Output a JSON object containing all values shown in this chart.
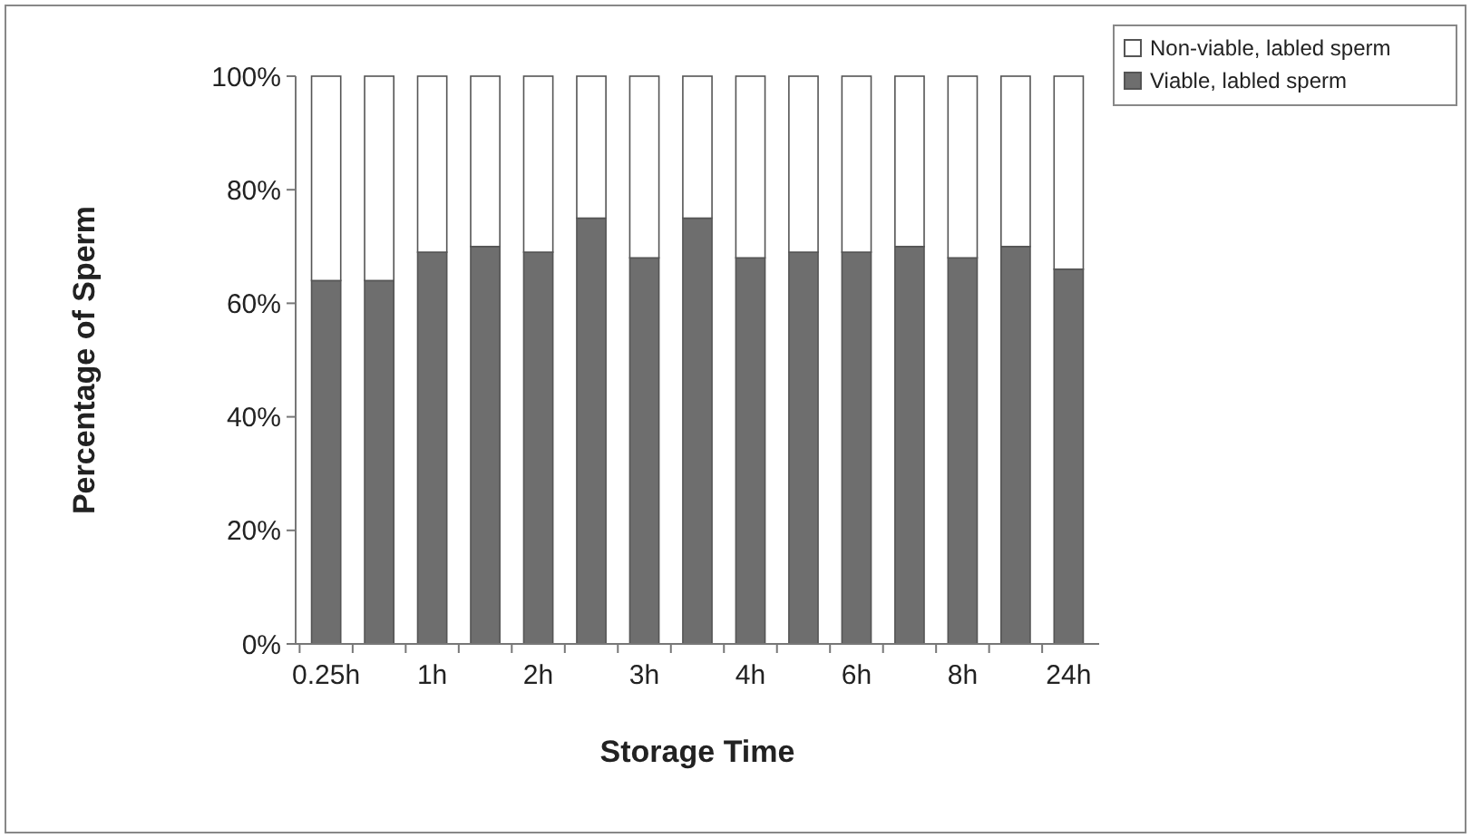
{
  "chart_data": {
    "type": "bar",
    "stacked": true,
    "xlabel": "Storage Time",
    "ylabel": "Percentage of Sperm",
    "categories": [
      "0.25h",
      null,
      "1h",
      null,
      "2h",
      null,
      "3h",
      null,
      "4h",
      null,
      "6h",
      null,
      "8h",
      null,
      "24h"
    ],
    "series": [
      {
        "name": "Viable, labled sperm",
        "color": "#6e6e6e",
        "values": [
          64,
          64,
          69,
          70,
          69,
          75,
          68,
          75,
          68,
          69,
          69,
          70,
          68,
          70,
          66
        ]
      },
      {
        "name": "Non-viable, labled sperm",
        "color": "#ffffff",
        "values": [
          36,
          36,
          31,
          30,
          31,
          25,
          32,
          25,
          32,
          31,
          31,
          30,
          32,
          30,
          34
        ]
      }
    ],
    "ylim": [
      0,
      100
    ],
    "yticks": [
      {
        "value": 0,
        "label": "0%"
      },
      {
        "value": 20,
        "label": "20%"
      },
      {
        "value": 40,
        "label": "40%"
      },
      {
        "value": 60,
        "label": "60%"
      },
      {
        "value": 80,
        "label": "80%"
      },
      {
        "value": 100,
        "label": "100%"
      }
    ],
    "legend": "top right",
    "grid": false
  }
}
